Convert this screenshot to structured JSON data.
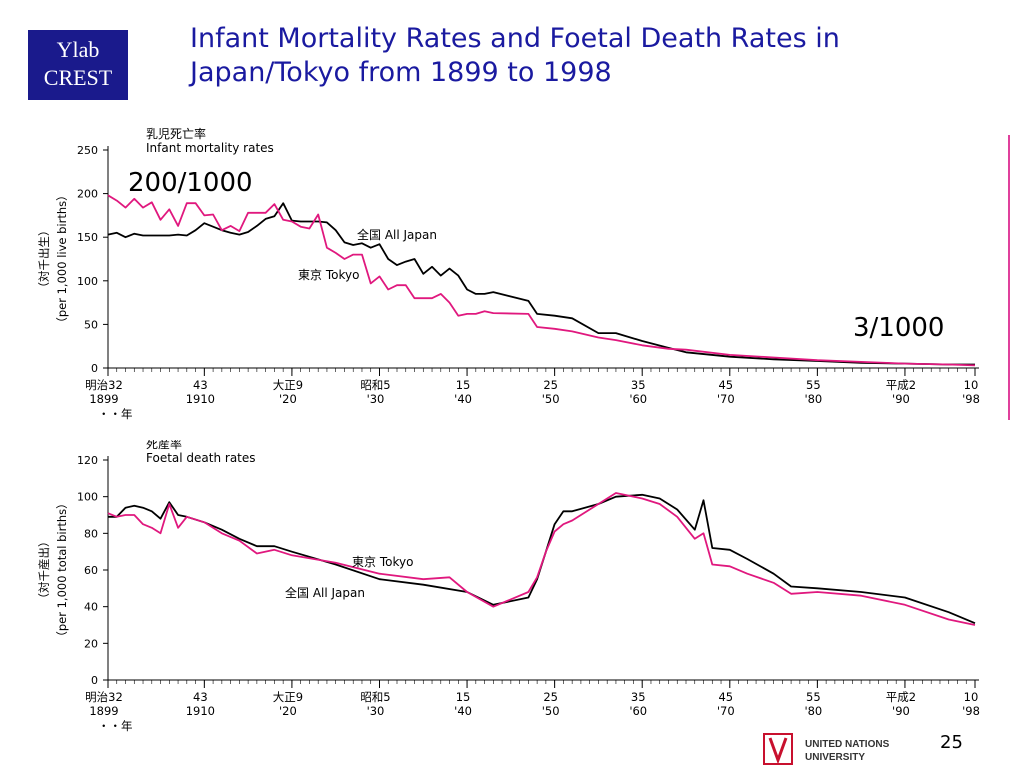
{
  "logo": {
    "line1": "Ylab",
    "line2": "CREST"
  },
  "title": {
    "line1": "Infant Mortality Rates and Foetal Death Rates in",
    "line2": "Japan/Tokyo from 1899 to 1998"
  },
  "annotations": {
    "high": "200/1000",
    "low": "3/1000"
  },
  "slide_number": "25",
  "footer": {
    "org_line1": "UNITED NATIONS",
    "org_line2": "UNIVERSITY"
  },
  "colors": {
    "all_japan": "#000000",
    "tokyo": "#e0187e",
    "title": "#1a1aa0",
    "logo_bg": "#1a1a8c"
  },
  "chart_data": [
    {
      "type": "line",
      "title_jp": "乳児死亡率",
      "title": "Infant mortality rates",
      "ylabel_jp": "（対千出生）",
      "ylabel": "（per 1,000 live births）",
      "ylim": [
        0,
        250
      ],
      "yticks": [
        "0",
        "50",
        "100",
        "150",
        "200",
        "250"
      ],
      "xlim": [
        1899,
        1998
      ],
      "xticks": [
        {
          "x": 1899,
          "top": "明治32",
          "bottom": "1899"
        },
        {
          "x": 1910,
          "top": "43",
          "bottom": "1910"
        },
        {
          "x": 1920,
          "top": "大正9",
          "bottom": "'20"
        },
        {
          "x": 1930,
          "top": "昭和5",
          "bottom": "'30"
        },
        {
          "x": 1940,
          "top": "15",
          "bottom": "'40"
        },
        {
          "x": 1950,
          "top": "25",
          "bottom": "'50"
        },
        {
          "x": 1960,
          "top": "35",
          "bottom": "'60"
        },
        {
          "x": 1970,
          "top": "45",
          "bottom": "'70"
        },
        {
          "x": 1980,
          "top": "55",
          "bottom": "'80"
        },
        {
          "x": 1990,
          "top": "平成2",
          "bottom": "'90"
        },
        {
          "x": 1998,
          "top": "10",
          "bottom": "'98"
        }
      ],
      "year_mark": "・・年",
      "series": [
        {
          "name": "全国 All Japan",
          "x": [
            1899,
            1900,
            1901,
            1902,
            1903,
            1904,
            1905,
            1906,
            1907,
            1908,
            1909,
            1910,
            1911,
            1912,
            1913,
            1914,
            1915,
            1916,
            1917,
            1918,
            1919,
            1920,
            1921,
            1922,
            1923,
            1924,
            1925,
            1926,
            1927,
            1928,
            1929,
            1930,
            1931,
            1932,
            1933,
            1934,
            1935,
            1936,
            1937,
            1938,
            1939,
            1940,
            1941,
            1942,
            1943,
            1947,
            1948,
            1950,
            1952,
            1955,
            1957,
            1960,
            1963,
            1965,
            1970,
            1975,
            1980,
            1985,
            1990,
            1995,
            1998
          ],
          "y": [
            153,
            155,
            150,
            154,
            152,
            152,
            152,
            152,
            153,
            152,
            158,
            166,
            162,
            158,
            155,
            153,
            156,
            163,
            171,
            174,
            189,
            169,
            168,
            168,
            168,
            167,
            158,
            144,
            141,
            143,
            138,
            142,
            125,
            118,
            122,
            125,
            108,
            116,
            106,
            114,
            106,
            90,
            85,
            85,
            87,
            77,
            62,
            60,
            57,
            40,
            40,
            31,
            23,
            18,
            13,
            10,
            8,
            6,
            5,
            4,
            4
          ]
        },
        {
          "name": "東京 Tokyo",
          "x": [
            1899,
            1900,
            1901,
            1902,
            1903,
            1904,
            1905,
            1906,
            1907,
            1908,
            1909,
            1910,
            1911,
            1912,
            1913,
            1914,
            1915,
            1916,
            1917,
            1918,
            1919,
            1920,
            1921,
            1922,
            1923,
            1924,
            1925,
            1926,
            1927,
            1928,
            1929,
            1930,
            1931,
            1932,
            1933,
            1934,
            1935,
            1936,
            1937,
            1938,
            1939,
            1940,
            1941,
            1942,
            1943,
            1947,
            1948,
            1950,
            1952,
            1955,
            1957,
            1960,
            1963,
            1965,
            1970,
            1975,
            1980,
            1985,
            1990,
            1995,
            1998
          ],
          "y": [
            198,
            192,
            184,
            194,
            184,
            190,
            170,
            182,
            163,
            189,
            189,
            175,
            176,
            158,
            163,
            157,
            178,
            178,
            178,
            188,
            170,
            168,
            162,
            160,
            176,
            138,
            132,
            125,
            130,
            130,
            97,
            105,
            90,
            95,
            95,
            80,
            80,
            80,
            85,
            75,
            60,
            62,
            62,
            65,
            63,
            62,
            47,
            45,
            42,
            35,
            32,
            26,
            22,
            21,
            15,
            12,
            9,
            7,
            5,
            4,
            3
          ]
        }
      ]
    },
    {
      "type": "line",
      "title_jp": "死産率",
      "title": "Foetal death rates",
      "ylabel_jp": "（対千産出）",
      "ylabel": "（per 1,000 total births）",
      "ylim": [
        0,
        120
      ],
      "yticks": [
        "0",
        "20",
        "40",
        "60",
        "80",
        "100",
        "120"
      ],
      "xlim": [
        1899,
        1998
      ],
      "xticks": [
        {
          "x": 1899,
          "top": "明治32",
          "bottom": "1899"
        },
        {
          "x": 1910,
          "top": "43",
          "bottom": "1910"
        },
        {
          "x": 1920,
          "top": "大正9",
          "bottom": "'20"
        },
        {
          "x": 1930,
          "top": "昭和5",
          "bottom": "'30"
        },
        {
          "x": 1940,
          "top": "15",
          "bottom": "'40"
        },
        {
          "x": 1950,
          "top": "25",
          "bottom": "'50"
        },
        {
          "x": 1960,
          "top": "35",
          "bottom": "'60"
        },
        {
          "x": 1970,
          "top": "45",
          "bottom": "'70"
        },
        {
          "x": 1980,
          "top": "55",
          "bottom": "'80"
        },
        {
          "x": 1990,
          "top": "平成2",
          "bottom": "'90"
        },
        {
          "x": 1998,
          "top": "10",
          "bottom": "'98"
        }
      ],
      "year_mark": "・・年",
      "series": [
        {
          "name": "全国 All Japan",
          "x": [
            1899,
            1900,
            1901,
            1902,
            1903,
            1904,
            1905,
            1906,
            1907,
            1908,
            1910,
            1912,
            1914,
            1916,
            1918,
            1920,
            1925,
            1930,
            1935,
            1940,
            1943,
            1947,
            1948,
            1949,
            1950,
            1951,
            1952,
            1955,
            1957,
            1960,
            1962,
            1964,
            1966,
            1967,
            1968,
            1970,
            1972,
            1975,
            1977,
            1980,
            1985,
            1990,
            1995,
            1998
          ],
          "y": [
            89,
            89,
            94,
            95,
            94,
            92,
            88,
            97,
            90,
            89,
            86,
            82,
            77,
            73,
            73,
            70,
            63,
            55,
            52,
            48,
            41,
            45,
            55,
            70,
            85,
            92,
            92,
            96,
            100,
            101,
            99,
            93,
            82,
            98,
            72,
            71,
            66,
            58,
            51,
            50,
            48,
            45,
            37,
            31
          ]
        },
        {
          "name": "東京 Tokyo",
          "x": [
            1899,
            1900,
            1901,
            1902,
            1903,
            1904,
            1905,
            1906,
            1907,
            1908,
            1910,
            1912,
            1914,
            1916,
            1918,
            1920,
            1925,
            1930,
            1935,
            1938,
            1940,
            1943,
            1947,
            1948,
            1949,
            1950,
            1951,
            1952,
            1955,
            1957,
            1960,
            1962,
            1964,
            1966,
            1967,
            1968,
            1970,
            1972,
            1975,
            1977,
            1980,
            1985,
            1990,
            1995,
            1998
          ],
          "y": [
            91,
            89,
            90,
            90,
            85,
            83,
            80,
            96,
            83,
            89,
            86,
            80,
            76,
            69,
            71,
            68,
            64,
            58,
            55,
            56,
            48,
            40,
            48,
            56,
            70,
            81,
            85,
            87,
            96,
            102,
            99,
            96,
            89,
            77,
            80,
            63,
            62,
            58,
            53,
            47,
            48,
            46,
            41,
            33,
            30
          ]
        }
      ]
    }
  ]
}
